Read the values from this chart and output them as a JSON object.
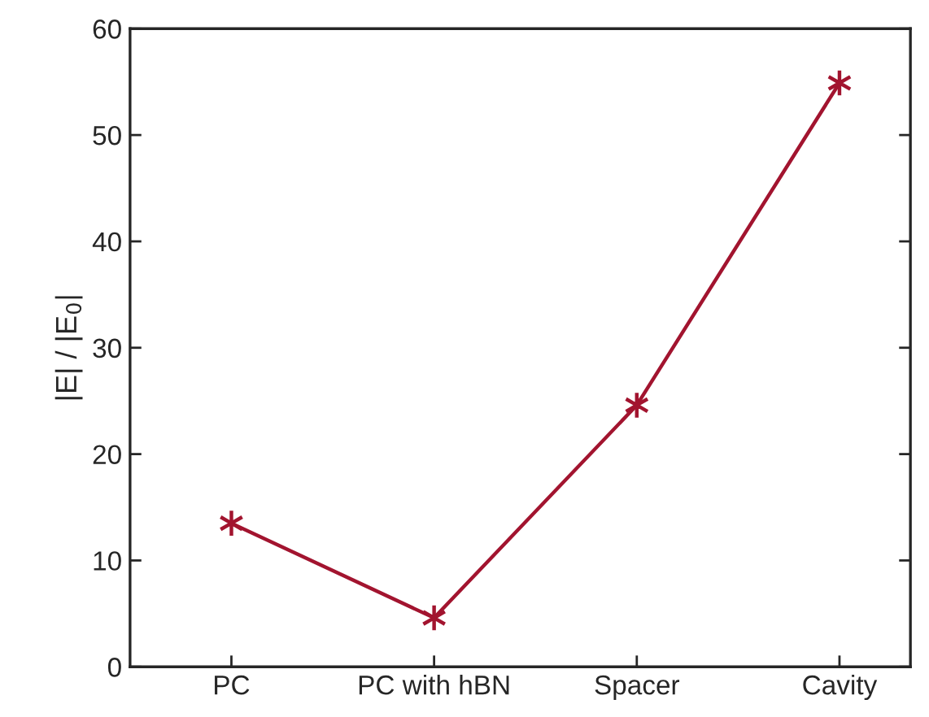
{
  "chart_data": {
    "type": "line",
    "ylabel": "|E| / |E$_{0}$|",
    "categories": [
      "PC",
      "PC with hBN",
      "Spacer",
      "Cavity"
    ],
    "series": [
      {
        "color": "#a2142f",
        "values": [
          13.5,
          4.6,
          24.6,
          54.9
        ]
      }
    ],
    "ylim": [
      0,
      60
    ],
    "yticks": [
      0,
      10,
      20,
      30,
      40,
      50,
      60
    ],
    "marker": "cross",
    "line_style": "solid",
    "grid": false,
    "legend": false
  }
}
